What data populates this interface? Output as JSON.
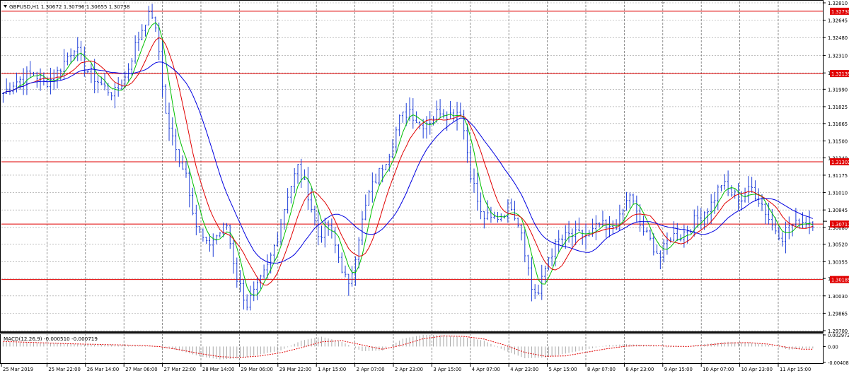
{
  "chart_data": [
    {
      "type": "line",
      "title": "GBPUSD,H1  1.30672 1.30796 1.30655 1.30738",
      "symbol_menu_icon": "triangle-down-icon",
      "y_ticks": [
        "1.32810",
        "1.32645",
        "1.32480",
        "1.32310",
        "1.32145",
        "1.31990",
        "1.31825",
        "1.31665",
        "1.31500",
        "1.31340",
        "1.31175",
        "1.31010",
        "1.30845",
        "1.30680",
        "1.30520",
        "1.30355",
        "1.30195",
        "1.30030",
        "1.29865",
        "1.29700"
      ],
      "ylim": [
        1.297,
        1.3281
      ],
      "x_ticks": [
        "25 Mar 2019",
        "25 Mar 22:00",
        "26 Mar 14:00",
        "27 Mar 06:00",
        "27 Mar 22:00",
        "28 Mar 14:00",
        "29 Mar 06:00",
        "29 Mar 22:00",
        "1 Apr 15:00",
        "2 Apr 07:00",
        "2 Apr 23:00",
        "3 Apr 15:00",
        "4 Apr 07:00",
        "4 Apr 23:00",
        "5 Apr 15:00",
        "8 Apr 07:00",
        "8 Apr 23:00",
        "9 Apr 15:00",
        "10 Apr 07:00",
        "10 Apr 23:00",
        "11 Apr 15:00"
      ],
      "grid": true,
      "horizontal_levels": [
        {
          "value": 1.3273,
          "label": "1.32730"
        },
        {
          "value": 1.32139,
          "label": "1.32139"
        },
        {
          "value": 1.31302,
          "label": "1.31302"
        },
        {
          "value": 1.30711,
          "label": "1.30711"
        },
        {
          "value": 1.30185,
          "label": "1.30185"
        }
      ],
      "current_price": {
        "value": 1.30738
      },
      "price_path": [
        [
          0,
          1.3195
        ],
        [
          3,
          1.3205
        ],
        [
          6,
          1.321
        ],
        [
          9,
          1.3215
        ],
        [
          12,
          1.3205
        ],
        [
          15,
          1.321
        ],
        [
          18,
          1.3225
        ],
        [
          21,
          1.324
        ],
        [
          24,
          1.322
        ],
        [
          27,
          1.321
        ],
        [
          30,
          1.32
        ],
        [
          33,
          1.3195
        ],
        [
          36,
          1.321
        ],
        [
          39,
          1.324
        ],
        [
          42,
          1.3265
        ],
        [
          44,
          1.327
        ],
        [
          46,
          1.3235
        ],
        [
          48,
          1.3175
        ],
        [
          51,
          1.314
        ],
        [
          54,
          1.312
        ],
        [
          57,
          1.307
        ],
        [
          60,
          1.305
        ],
        [
          63,
          1.306
        ],
        [
          66,
          1.307
        ],
        [
          69,
          1.302
        ],
        [
          72,
          1.2995
        ],
        [
          75,
          1.301
        ],
        [
          78,
          1.303
        ],
        [
          81,
          1.306
        ],
        [
          84,
          1.31
        ],
        [
          87,
          1.3125
        ],
        [
          90,
          1.31
        ],
        [
          93,
          1.306
        ],
        [
          96,
          1.307
        ],
        [
          99,
          1.304
        ],
        [
          102,
          1.301
        ],
        [
          105,
          1.306
        ],
        [
          108,
          1.31
        ],
        [
          111,
          1.312
        ],
        [
          114,
          1.314
        ],
        [
          117,
          1.317
        ],
        [
          120,
          1.318
        ],
        [
          123,
          1.3165
        ],
        [
          126,
          1.317
        ],
        [
          129,
          1.318
        ],
        [
          132,
          1.3175
        ],
        [
          135,
          1.318
        ],
        [
          138,
          1.312
        ],
        [
          141,
          1.308
        ],
        [
          144,
          1.3075
        ],
        [
          147,
          1.308
        ],
        [
          150,
          1.309
        ],
        [
          153,
          1.3065
        ],
        [
          156,
          1.301
        ],
        [
          158,
          1.3005
        ],
        [
          161,
          1.304
        ],
        [
          164,
          1.3055
        ],
        [
          167,
          1.306
        ],
        [
          170,
          1.306
        ],
        [
          173,
          1.306
        ],
        [
          176,
          1.307
        ],
        [
          179,
          1.3065
        ],
        [
          182,
          1.3075
        ],
        [
          185,
          1.31
        ],
        [
          188,
          1.307
        ],
        [
          191,
          1.3055
        ],
        [
          194,
          1.304
        ],
        [
          197,
          1.306
        ],
        [
          200,
          1.306
        ],
        [
          203,
          1.307
        ],
        [
          206,
          1.308
        ],
        [
          209,
          1.309
        ],
        [
          212,
          1.311
        ],
        [
          215,
          1.31
        ],
        [
          218,
          1.3095
        ],
        [
          221,
          1.3105
        ],
        [
          224,
          1.309
        ],
        [
          227,
          1.307
        ],
        [
          230,
          1.306
        ],
        [
          232,
          1.307
        ],
        [
          234,
          1.307
        ],
        [
          236,
          1.3074
        ]
      ],
      "series": [
        {
          "name": "",
          "color": "#00c000",
          "period": 5
        },
        {
          "name": "",
          "color": "#e00000",
          "period": 10
        },
        {
          "name": "",
          "color": "#0000e0",
          "period": 20
        }
      ]
    },
    {
      "type": "bar",
      "title": "MACD(12,26,9) -0.000510 -0.000719",
      "y_ticks": [
        "0.002972",
        "0.00",
        "-0.00408"
      ],
      "ylim": [
        -0.00408,
        0.002972
      ],
      "macd": [
        [
          0,
          0.0012
        ],
        [
          8,
          0.0009
        ],
        [
          16,
          0.0008
        ],
        [
          24,
          0.0005
        ],
        [
          32,
          0.0005
        ],
        [
          40,
          0.0002
        ],
        [
          46,
          0.0
        ],
        [
          52,
          -0.001
        ],
        [
          58,
          -0.0025
        ],
        [
          64,
          -0.0033
        ],
        [
          70,
          -0.003
        ],
        [
          76,
          -0.002
        ],
        [
          82,
          -0.001
        ],
        [
          88,
          0.0015
        ],
        [
          94,
          0.0025
        ],
        [
          100,
          0.0012
        ],
        [
          106,
          -0.0012
        ],
        [
          112,
          -0.001
        ],
        [
          118,
          0.002
        ],
        [
          124,
          0.003
        ],
        [
          130,
          0.0029
        ],
        [
          136,
          0.0024
        ],
        [
          142,
          0.0015
        ],
        [
          148,
          -0.001
        ],
        [
          154,
          -0.003
        ],
        [
          160,
          -0.0028
        ],
        [
          166,
          -0.0018
        ],
        [
          172,
          -0.0008
        ],
        [
          178,
          0.0003
        ],
        [
          184,
          0.0006
        ],
        [
          190,
          0.0004
        ],
        [
          196,
          -0.0002
        ],
        [
          202,
          0.0
        ],
        [
          208,
          0.0007
        ],
        [
          214,
          0.0012
        ],
        [
          220,
          0.001
        ],
        [
          226,
          0.0004
        ],
        [
          232,
          -0.0008
        ],
        [
          236,
          -0.0005
        ]
      ],
      "signal": [
        [
          0,
          0.0013
        ],
        [
          10,
          0.001
        ],
        [
          20,
          0.0007
        ],
        [
          30,
          0.0005
        ],
        [
          40,
          0.0003
        ],
        [
          46,
          0.0
        ],
        [
          52,
          -0.0008
        ],
        [
          58,
          -0.0018
        ],
        [
          64,
          -0.0026
        ],
        [
          70,
          -0.0028
        ],
        [
          76,
          -0.0024
        ],
        [
          82,
          -0.0016
        ],
        [
          88,
          -0.0003
        ],
        [
          94,
          0.0012
        ],
        [
          100,
          0.0015
        ],
        [
          106,
          0.0004
        ],
        [
          112,
          -0.0007
        ],
        [
          118,
          0.0004
        ],
        [
          124,
          0.002
        ],
        [
          130,
          0.0027
        ],
        [
          136,
          0.0026
        ],
        [
          142,
          0.0019
        ],
        [
          148,
          0.0004
        ],
        [
          154,
          -0.0015
        ],
        [
          160,
          -0.0025
        ],
        [
          166,
          -0.0024
        ],
        [
          172,
          -0.0015
        ],
        [
          178,
          -0.0006
        ],
        [
          184,
          0.0001
        ],
        [
          190,
          0.0003
        ],
        [
          196,
          0.0001
        ],
        [
          202,
          0.0
        ],
        [
          208,
          0.0004
        ],
        [
          214,
          0.0009
        ],
        [
          220,
          0.001
        ],
        [
          226,
          0.0006
        ],
        [
          232,
          -0.0003
        ],
        [
          236,
          -0.0007
        ]
      ],
      "bar_color": "#a8a8a8",
      "signal_color": "#e00000"
    }
  ],
  "colors": {
    "level_line": "#e00000",
    "level_label_bg": "#e00000",
    "bar": "#1f3fd8",
    "grid": "#9a9a9a",
    "axis_text": "#000000"
  }
}
